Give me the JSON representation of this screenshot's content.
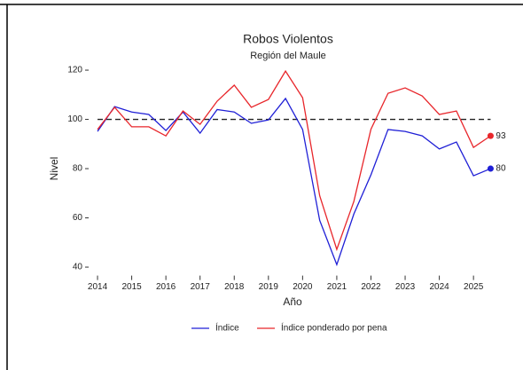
{
  "chart_data": {
    "type": "line",
    "title": "Robos Violentos",
    "subtitle": "Región del Maule",
    "x_label": "Año",
    "y_label": "Nivel",
    "x": [
      2014,
      2014.5,
      2015,
      2015.5,
      2016,
      2016.5,
      2017,
      2017.5,
      2018,
      2018.5,
      2019,
      2019.5,
      2020,
      2020.5,
      2021,
      2021.5,
      2022,
      2022.5,
      2023,
      2023.5,
      2024,
      2024.5,
      2025,
      2025.5
    ],
    "series": [
      {
        "name": "Índice",
        "color": "#1f1fd6",
        "values": [
          95.1,
          105.2,
          103,
          102,
          95.5,
          103,
          94.4,
          104,
          103,
          98.4,
          99.8,
          108.5,
          95.9,
          59,
          41,
          61.6,
          77.5,
          95.9,
          95.1,
          93.3,
          88,
          90.8,
          77.1,
          80
        ],
        "value_labels": [
          null,
          null,
          null,
          null,
          null,
          null,
          null,
          null,
          null,
          null,
          null,
          null,
          null,
          null,
          null,
          null,
          null,
          null,
          null,
          null,
          null,
          null,
          null,
          "80"
        ]
      },
      {
        "name": "Índice ponderado por pena",
        "color": "#e8262b",
        "values": [
          95.9,
          104.9,
          97,
          97,
          93.3,
          103.4,
          98,
          107.4,
          113.9,
          104.9,
          108.1,
          119.6,
          108.8,
          69,
          47.2,
          66.7,
          96,
          110.6,
          112.8,
          109.5,
          102,
          103.4,
          88.6,
          93.3
        ],
        "value_labels": [
          null,
          null,
          null,
          null,
          null,
          null,
          null,
          null,
          null,
          null,
          null,
          null,
          null,
          null,
          null,
          null,
          null,
          null,
          null,
          null,
          null,
          null,
          null,
          "93"
        ]
      }
    ],
    "hline": 100,
    "xlim": [
      2013.74,
      2025.8
    ],
    "ylim": [
      38,
      122
    ],
    "xticks": [
      2014,
      2015,
      2016,
      2017,
      2018,
      2019,
      2020,
      2021,
      2022,
      2023,
      2024,
      2025
    ],
    "yticks": [
      40,
      60,
      80,
      100,
      120
    ],
    "legend": "bottom"
  }
}
